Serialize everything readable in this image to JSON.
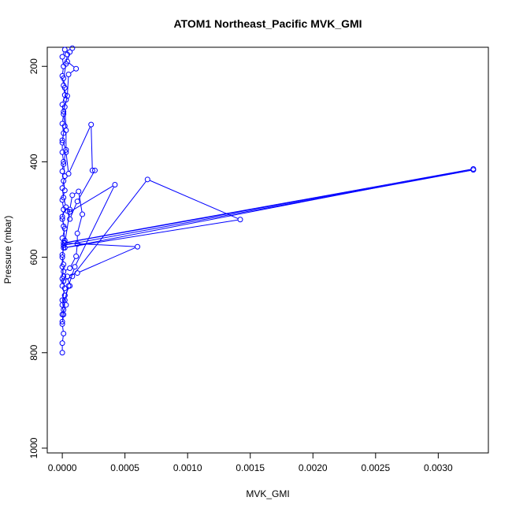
{
  "chart_data": {
    "type": "line",
    "title": "ATOM1 Northeast_Pacific MVK_GMI",
    "xlabel": "MVK_GMI",
    "ylabel": "Pressure (mbar)",
    "xlim": [
      -0.00012,
      0.0034
    ],
    "ylim": [
      1010,
      160
    ],
    "y_reversed": true,
    "grid": false,
    "xticks": [
      0.0,
      0.0005,
      0.001,
      0.0015,
      0.002,
      0.0025,
      0.003
    ],
    "xtick_labels": [
      "0.0000",
      "0.0005",
      "0.0010",
      "0.0015",
      "0.0020",
      "0.0025",
      "0.0030"
    ],
    "yticks": [
      200,
      400,
      600,
      800,
      1000
    ],
    "ytick_labels": [
      "200",
      "400",
      "600",
      "800",
      "1000"
    ],
    "color": "#0000ff",
    "series": [
      {
        "values": [
          [
            0.0,
            800
          ],
          [
            0.0,
            780
          ],
          [
            1e-05,
            760
          ],
          [
            0.0,
            740
          ],
          [
            1e-05,
            720
          ],
          [
            0.0,
            700
          ],
          [
            2e-05,
            680
          ],
          [
            0.0,
            660
          ],
          [
            1e-05,
            640
          ],
          [
            0.0,
            620
          ],
          [
            0.0,
            600
          ],
          [
            1e-05,
            580
          ],
          [
            0.0,
            560
          ],
          [
            2e-05,
            540
          ],
          [
            0.0,
            520
          ],
          [
            1e-05,
            500
          ],
          [
            0.0,
            480
          ],
          [
            2e-05,
            460
          ],
          [
            1e-05,
            440
          ],
          [
            0.0,
            420
          ],
          [
            1e-05,
            400
          ],
          [
            0.0,
            380
          ],
          [
            0.0,
            360
          ],
          [
            1e-05,
            340
          ],
          [
            0.0,
            320
          ],
          [
            1e-05,
            300
          ],
          [
            0.0,
            280
          ],
          [
            2e-05,
            260
          ],
          [
            1e-05,
            240
          ],
          [
            0.0,
            220
          ],
          [
            1e-05,
            200
          ],
          [
            0.0,
            180
          ],
          [
            2e-05,
            165
          ]
        ]
      },
      {
        "values": [
          [
            0.0,
            720
          ],
          [
            3e-05,
            700
          ],
          [
            2e-05,
            680
          ],
          [
            6e-05,
            660
          ],
          [
            4e-05,
            640
          ],
          [
            0.00012,
            633
          ],
          [
            0.0006,
            578
          ],
          [
            1e-05,
            570
          ],
          [
            0.00328,
            415
          ],
          [
            2e-05,
            580
          ],
          [
            0.00142,
            521
          ],
          [
            0.00068,
            437
          ],
          [
            8e-05,
            640
          ],
          [
            1e-05,
            650
          ]
        ]
      },
      {
        "values": [
          [
            2e-05,
            690
          ],
          [
            5e-05,
            660
          ],
          [
            0.0001,
            620
          ],
          [
            0.00042,
            448
          ],
          [
            6e-05,
            505
          ],
          [
            2e-05,
            570
          ],
          [
            0.00328,
            417
          ],
          [
            1e-05,
            575
          ]
        ]
      },
      {
        "values": [
          [
            1e-05,
            630
          ],
          [
            6e-05,
            623
          ],
          [
            0.00011,
            598
          ],
          [
            0.00012,
            572
          ],
          [
            0.00012,
            550
          ],
          [
            0.00016,
            510
          ],
          [
            0.00013,
            462
          ],
          [
            8e-05,
            470
          ],
          [
            6e-05,
            500
          ],
          [
            4e-05,
            503
          ],
          [
            6e-05,
            520
          ],
          [
            0.00012,
            483
          ],
          [
            0.00026,
            418
          ],
          [
            0.00024,
            418
          ],
          [
            0.00023,
            322
          ],
          [
            5e-05,
            425
          ],
          [
            3e-05,
            380
          ],
          [
            3e-05,
            334
          ],
          [
            2e-05,
            285
          ],
          [
            4e-05,
            262
          ],
          [
            5e-05,
            217
          ],
          [
            0.00011,
            205
          ],
          [
            4e-05,
            190
          ],
          [
            6e-05,
            170
          ],
          [
            8e-05,
            162
          ]
        ]
      },
      {
        "values": [
          [
            0.0,
            735
          ],
          [
            1e-05,
            710
          ],
          [
            0.0,
            690
          ],
          [
            2e-05,
            665
          ],
          [
            0.0,
            645
          ],
          [
            1e-05,
            615
          ],
          [
            0.0,
            595
          ],
          [
            2e-05,
            565
          ],
          [
            1e-05,
            535
          ],
          [
            0.0,
            515
          ],
          [
            3e-05,
            495
          ],
          [
            1e-05,
            475
          ],
          [
            0.0,
            455
          ],
          [
            2e-05,
            430
          ],
          [
            1e-05,
            405
          ],
          [
            3e-05,
            375
          ],
          [
            0.0,
            355
          ],
          [
            2e-05,
            325
          ],
          [
            1e-05,
            295
          ],
          [
            3e-05,
            270
          ],
          [
            2e-05,
            245
          ],
          [
            1e-05,
            225
          ],
          [
            3e-05,
            195
          ],
          [
            4e-05,
            175
          ]
        ]
      }
    ]
  }
}
